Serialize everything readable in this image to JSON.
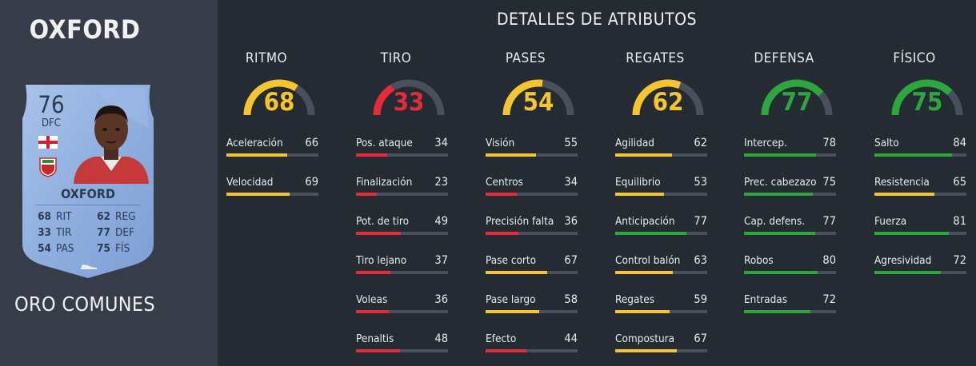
{
  "player": {
    "name_title": "OXFORD",
    "rarity": "ORO COMUNES"
  },
  "card": {
    "rating": "76",
    "position": "DFC",
    "name": "OXFORD",
    "flag_icon": "england-flag-icon",
    "club_icon": "augsburg-crest-icon",
    "stats": [
      {
        "value": "68",
        "label": "RIT"
      },
      {
        "value": "62",
        "label": "REG"
      },
      {
        "value": "33",
        "label": "TIR"
      },
      {
        "value": "77",
        "label": "DEF"
      },
      {
        "value": "54",
        "label": "PAS"
      },
      {
        "value": "75",
        "label": "FÍS"
      }
    ]
  },
  "section_title": "DETALLES DE ATRIBUTOS",
  "colors": {
    "red": "#e8293a",
    "yellow": "#f5c431",
    "green": "#2ea63e",
    "track": "#47505c"
  },
  "categories": [
    {
      "name": "RITMO",
      "value": "68",
      "color": "yellow",
      "attributes": [
        {
          "label": "Aceleración",
          "value": "66",
          "color": "yellow"
        },
        {
          "label": "Velocidad",
          "value": "69",
          "color": "yellow"
        }
      ]
    },
    {
      "name": "TIRO",
      "value": "33",
      "color": "red",
      "attributes": [
        {
          "label": "Pos. ataque",
          "value": "34",
          "color": "red"
        },
        {
          "label": "Finalización",
          "value": "23",
          "color": "red"
        },
        {
          "label": "Pot. de tiro",
          "value": "49",
          "color": "red"
        },
        {
          "label": "Tiro lejano",
          "value": "37",
          "color": "red"
        },
        {
          "label": "Voleas",
          "value": "36",
          "color": "red"
        },
        {
          "label": "Penaltis",
          "value": "48",
          "color": "red"
        }
      ]
    },
    {
      "name": "PASES",
      "value": "54",
      "color": "yellow",
      "attributes": [
        {
          "label": "Visión",
          "value": "55",
          "color": "yellow"
        },
        {
          "label": "Centros",
          "value": "34",
          "color": "red"
        },
        {
          "label": "Precisión falta",
          "value": "36",
          "color": "red"
        },
        {
          "label": "Pase corto",
          "value": "67",
          "color": "yellow"
        },
        {
          "label": "Pase largo",
          "value": "58",
          "color": "yellow"
        },
        {
          "label": "Efecto",
          "value": "44",
          "color": "red"
        }
      ]
    },
    {
      "name": "REGATES",
      "value": "62",
      "color": "yellow",
      "attributes": [
        {
          "label": "Agilidad",
          "value": "62",
          "color": "yellow"
        },
        {
          "label": "Equilibrio",
          "value": "53",
          "color": "yellow"
        },
        {
          "label": "Anticipación",
          "value": "77",
          "color": "green"
        },
        {
          "label": "Control balón",
          "value": "63",
          "color": "yellow"
        },
        {
          "label": "Regates",
          "value": "59",
          "color": "yellow"
        },
        {
          "label": "Compostura",
          "value": "67",
          "color": "yellow"
        }
      ]
    },
    {
      "name": "DEFENSA",
      "value": "77",
      "color": "green",
      "attributes": [
        {
          "label": "Intercep.",
          "value": "78",
          "color": "green"
        },
        {
          "label": "Prec. cabezazo",
          "value": "75",
          "color": "green"
        },
        {
          "label": "Cap. defens.",
          "value": "77",
          "color": "green"
        },
        {
          "label": "Robos",
          "value": "80",
          "color": "green"
        },
        {
          "label": "Entradas",
          "value": "72",
          "color": "green"
        }
      ]
    },
    {
      "name": "FÍSICO",
      "value": "75",
      "color": "green",
      "attributes": [
        {
          "label": "Salto",
          "value": "84",
          "color": "green"
        },
        {
          "label": "Resistencia",
          "value": "65",
          "color": "yellow"
        },
        {
          "label": "Fuerza",
          "value": "81",
          "color": "green"
        },
        {
          "label": "Agresividad",
          "value": "72",
          "color": "green"
        }
      ]
    }
  ]
}
